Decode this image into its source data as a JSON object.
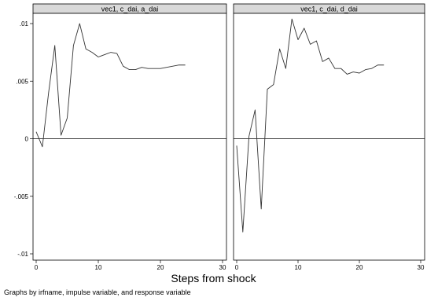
{
  "chart_data": {
    "type": "line",
    "xlabel": "Steps from shock",
    "note": "Graphs by irfname, impulse variable, and response variable",
    "xlim": [
      0,
      30
    ],
    "ylim": [
      -0.01,
      0.01
    ],
    "x_ticks": [
      0,
      10,
      20,
      30
    ],
    "x_tick_labels": [
      "0",
      "10",
      "20",
      "30"
    ],
    "y_ticks": [
      0.01,
      0.005,
      0,
      -0.005,
      -0.01
    ],
    "y_tick_labels": [
      ".01",
      ".005",
      "0",
      "-.005",
      "-.01"
    ],
    "zero_line": 0,
    "line_color": "#333333",
    "strip_color": "#d9d9d9",
    "panels": [
      {
        "title": "vec1, c_dai, a_dai",
        "x": [
          0,
          1,
          2,
          3,
          4,
          5,
          6,
          7,
          8,
          9,
          10,
          11,
          12,
          13,
          14,
          15,
          16,
          17,
          18,
          19,
          20,
          21,
          22,
          23,
          24
        ],
        "y": [
          0.0006,
          -0.0007,
          0.004,
          0.0081,
          0.0003,
          0.0018,
          0.0081,
          0.01,
          0.0078,
          0.0075,
          0.0071,
          0.0073,
          0.0075,
          0.0074,
          0.0063,
          0.006,
          0.006,
          0.0062,
          0.0061,
          0.0061,
          0.0061,
          0.0062,
          0.0063,
          0.0064,
          0.0064
        ]
      },
      {
        "title": "vec1, c_dai, d_dai",
        "x": [
          0,
          1,
          2,
          3,
          4,
          5,
          6,
          7,
          8,
          9,
          10,
          11,
          12,
          13,
          14,
          15,
          16,
          17,
          18,
          19,
          20,
          21,
          22,
          23,
          24
        ],
        "y": [
          -0.0006,
          -0.0081,
          0.0002,
          0.0025,
          -0.0061,
          0.0043,
          0.0047,
          0.0078,
          0.0061,
          0.0104,
          0.0086,
          0.0096,
          0.0082,
          0.0085,
          0.0067,
          0.007,
          0.0061,
          0.0061,
          0.0056,
          0.0058,
          0.0057,
          0.006,
          0.0061,
          0.0064,
          0.0064
        ]
      }
    ]
  }
}
